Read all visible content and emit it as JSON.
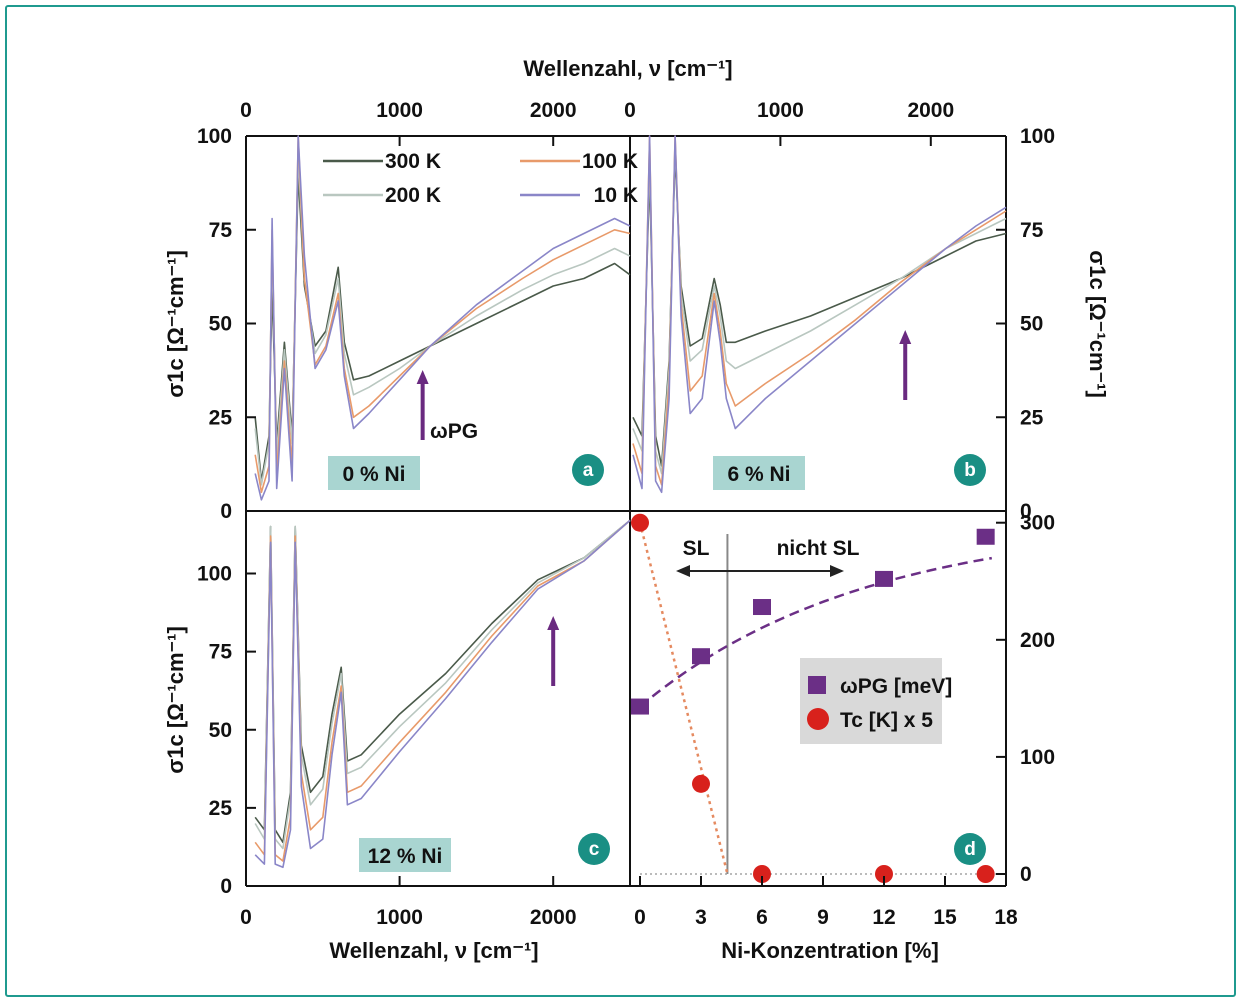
{
  "figure": {
    "top_axis_title": "Wellenzahl, ν [cm⁻¹]",
    "bottom_left_axis_title": "Wellenzahl, ν [cm⁻¹]",
    "bottom_right_axis_title": "Ni-Konzentration [%]",
    "left_axis_title": "σ1c [Ω⁻¹cm⁻¹]",
    "right_axis_title": "σ1c [Ω⁻¹cm⁻¹]",
    "pg_label": "ωPG",
    "legend": [
      {
        "label": "300 K",
        "color": "#4a5a4a"
      },
      {
        "label": "100 K",
        "color": "#e89a6a"
      },
      {
        "label": "200 K",
        "color": "#b9c7c0"
      },
      {
        "label": "10 K",
        "color": "#8a86c8"
      }
    ],
    "colors": {
      "frame": "#1f9a8f",
      "badge": "#1a8f84",
      "panel_label_bg": "#a9d5d1",
      "arrow": "#6a2a80",
      "tc_marker": "#d8211c",
      "pg_marker": "#6b2f86",
      "sl_line": "#888888"
    }
  },
  "chart_data": [
    {
      "type": "line",
      "panel": "a",
      "label": "0 % Ni",
      "badge": "a",
      "xlim": [
        0,
        2500
      ],
      "ylim": [
        0,
        100
      ],
      "xticks": [
        0,
        1000,
        2000
      ],
      "yticks": [
        0,
        25,
        50,
        75,
        100
      ],
      "arrow_x": 1150,
      "series": [
        {
          "name": "300 K",
          "x": [
            60,
            100,
            150,
            170,
            200,
            250,
            300,
            340,
            380,
            450,
            520,
            600,
            640,
            700,
            800,
            1000,
            1200,
            1500,
            1800,
            2000,
            2200,
            2400,
            2500
          ],
          "y": [
            25,
            8,
            20,
            60,
            18,
            45,
            20,
            90,
            60,
            44,
            48,
            65,
            45,
            35,
            36,
            40,
            44,
            50,
            56,
            60,
            62,
            66,
            63
          ]
        },
        {
          "name": "200 K",
          "x": [
            60,
            100,
            150,
            170,
            200,
            250,
            300,
            340,
            380,
            450,
            520,
            600,
            640,
            700,
            800,
            1000,
            1200,
            1500,
            1800,
            2000,
            2200,
            2400,
            2500
          ],
          "y": [
            22,
            7,
            18,
            70,
            15,
            43,
            18,
            95,
            62,
            42,
            47,
            62,
            42,
            31,
            33,
            38,
            44,
            52,
            59,
            63,
            66,
            70,
            68
          ]
        },
        {
          "name": "100 K",
          "x": [
            60,
            100,
            150,
            170,
            200,
            250,
            300,
            340,
            380,
            450,
            520,
            600,
            640,
            700,
            800,
            1000,
            1200,
            1500,
            1800,
            2000,
            2200,
            2400,
            2500
          ],
          "y": [
            15,
            5,
            12,
            75,
            10,
            40,
            12,
            100,
            62,
            39,
            44,
            58,
            38,
            25,
            28,
            36,
            44,
            54,
            62,
            67,
            71,
            75,
            74
          ]
        },
        {
          "name": "10 K",
          "x": [
            60,
            100,
            150,
            170,
            200,
            250,
            300,
            340,
            380,
            450,
            520,
            600,
            640,
            700,
            800,
            1000,
            1200,
            1500,
            1800,
            2000,
            2200,
            2400,
            2500
          ],
          "y": [
            10,
            3,
            8,
            78,
            6,
            38,
            8,
            100,
            68,
            38,
            43,
            56,
            36,
            22,
            26,
            35,
            44,
            55,
            64,
            70,
            74,
            78,
            76
          ]
        }
      ]
    },
    {
      "type": "line",
      "panel": "b",
      "label": "6 % Ni",
      "badge": "b",
      "xlim": [
        0,
        2500
      ],
      "ylim": [
        0,
        100
      ],
      "xticks": [
        0,
        1000,
        2000
      ],
      "yticks": [
        0,
        25,
        50,
        75,
        100
      ],
      "arrow_x": 1830,
      "series": [
        {
          "name": "300 K",
          "x": [
            20,
            80,
            130,
            170,
            210,
            260,
            300,
            340,
            400,
            480,
            560,
            600,
            640,
            700,
            900,
            1200,
            1500,
            1800,
            2100,
            2300,
            2500
          ],
          "y": [
            25,
            20,
            90,
            20,
            12,
            40,
            95,
            60,
            44,
            46,
            62,
            55,
            45,
            45,
            48,
            52,
            57,
            62,
            68,
            72,
            74
          ]
        },
        {
          "name": "200 K",
          "x": [
            20,
            80,
            130,
            170,
            210,
            260,
            300,
            340,
            400,
            480,
            560,
            600,
            640,
            700,
            900,
            1200,
            1500,
            1800,
            2100,
            2300,
            2500
          ],
          "y": [
            22,
            16,
            95,
            16,
            10,
            38,
            98,
            58,
            40,
            43,
            60,
            52,
            40,
            38,
            42,
            48,
            55,
            62,
            70,
            74,
            78
          ]
        },
        {
          "name": "100 K",
          "x": [
            20,
            80,
            130,
            170,
            210,
            260,
            300,
            340,
            400,
            480,
            560,
            600,
            640,
            700,
            900,
            1200,
            1500,
            1800,
            2100,
            2300,
            2500
          ],
          "y": [
            18,
            10,
            100,
            12,
            7,
            34,
            100,
            55,
            32,
            36,
            58,
            48,
            34,
            28,
            34,
            42,
            51,
            61,
            70,
            75,
            80
          ]
        },
        {
          "name": "10 K",
          "x": [
            20,
            80,
            130,
            170,
            210,
            260,
            300,
            340,
            400,
            480,
            560,
            600,
            640,
            700,
            900,
            1200,
            1500,
            1800,
            2100,
            2300,
            2500
          ],
          "y": [
            15,
            6,
            100,
            8,
            5,
            30,
            100,
            52,
            26,
            30,
            56,
            45,
            30,
            22,
            30,
            40,
            50,
            60,
            70,
            76,
            81
          ]
        }
      ]
    },
    {
      "type": "line",
      "panel": "c",
      "label": "12 % Ni",
      "badge": "c",
      "xlim": [
        0,
        2500
      ],
      "ylim": [
        0,
        120
      ],
      "xticks": [
        0,
        1000,
        2000
      ],
      "yticks": [
        0,
        25,
        50,
        75,
        100
      ],
      "arrow_x": 2000,
      "series": [
        {
          "name": "300 K",
          "x": [
            60,
            120,
            160,
            190,
            240,
            290,
            320,
            360,
            420,
            500,
            560,
            620,
            660,
            750,
            1000,
            1300,
            1600,
            1900,
            2200,
            2500
          ],
          "y": [
            22,
            18,
            115,
            18,
            14,
            30,
            115,
            45,
            30,
            35,
            55,
            70,
            40,
            42,
            55,
            68,
            84,
            98,
            105,
            117
          ]
        },
        {
          "name": "200 K",
          "x": [
            60,
            120,
            160,
            190,
            240,
            290,
            320,
            360,
            420,
            500,
            560,
            620,
            660,
            750,
            1000,
            1300,
            1600,
            1900,
            2200,
            2500
          ],
          "y": [
            20,
            15,
            115,
            15,
            12,
            28,
            115,
            42,
            26,
            31,
            52,
            68,
            36,
            38,
            51,
            65,
            82,
            97,
            105,
            117
          ]
        },
        {
          "name": "100 K",
          "x": [
            60,
            120,
            160,
            190,
            240,
            290,
            320,
            360,
            420,
            500,
            560,
            620,
            660,
            750,
            1000,
            1300,
            1600,
            1900,
            2200,
            2500
          ],
          "y": [
            14,
            10,
            112,
            10,
            8,
            22,
            112,
            36,
            18,
            22,
            46,
            64,
            30,
            32,
            46,
            62,
            80,
            96,
            104,
            117
          ]
        },
        {
          "name": "10 K",
          "x": [
            60,
            120,
            160,
            190,
            240,
            290,
            320,
            360,
            420,
            500,
            560,
            620,
            660,
            750,
            1000,
            1300,
            1600,
            1900,
            2200,
            2500
          ],
          "y": [
            10,
            7,
            110,
            7,
            6,
            18,
            110,
            32,
            12,
            15,
            42,
            62,
            26,
            28,
            43,
            60,
            78,
            95,
            104,
            117
          ]
        }
      ]
    },
    {
      "type": "scatter",
      "panel": "d",
      "badge": "d",
      "xlim": [
        0,
        18
      ],
      "ylim_right": [
        0,
        310
      ],
      "xticks": [
        0,
        3,
        6,
        9,
        12,
        15,
        18
      ],
      "yticks": [
        0,
        100,
        200,
        300
      ],
      "sl_boundary_x": 4.3,
      "sl_label": "SL",
      "nicht_sl_label": "nicht SL",
      "series": [
        {
          "name": "ωPG [meV]",
          "marker": "square",
          "x": [
            0,
            3,
            6,
            12,
            17
          ],
          "y": [
            143,
            186,
            228,
            252,
            288
          ]
        },
        {
          "name": "Tc [K] x 5",
          "marker": "circle",
          "x": [
            0,
            3,
            6,
            12,
            17
          ],
          "y": [
            300,
            77,
            0,
            0,
            0
          ]
        }
      ],
      "legend": [
        {
          "label": "ωPG [meV]",
          "marker": "square"
        },
        {
          "label": "Tc [K] x 5",
          "marker": "circle"
        }
      ]
    }
  ]
}
